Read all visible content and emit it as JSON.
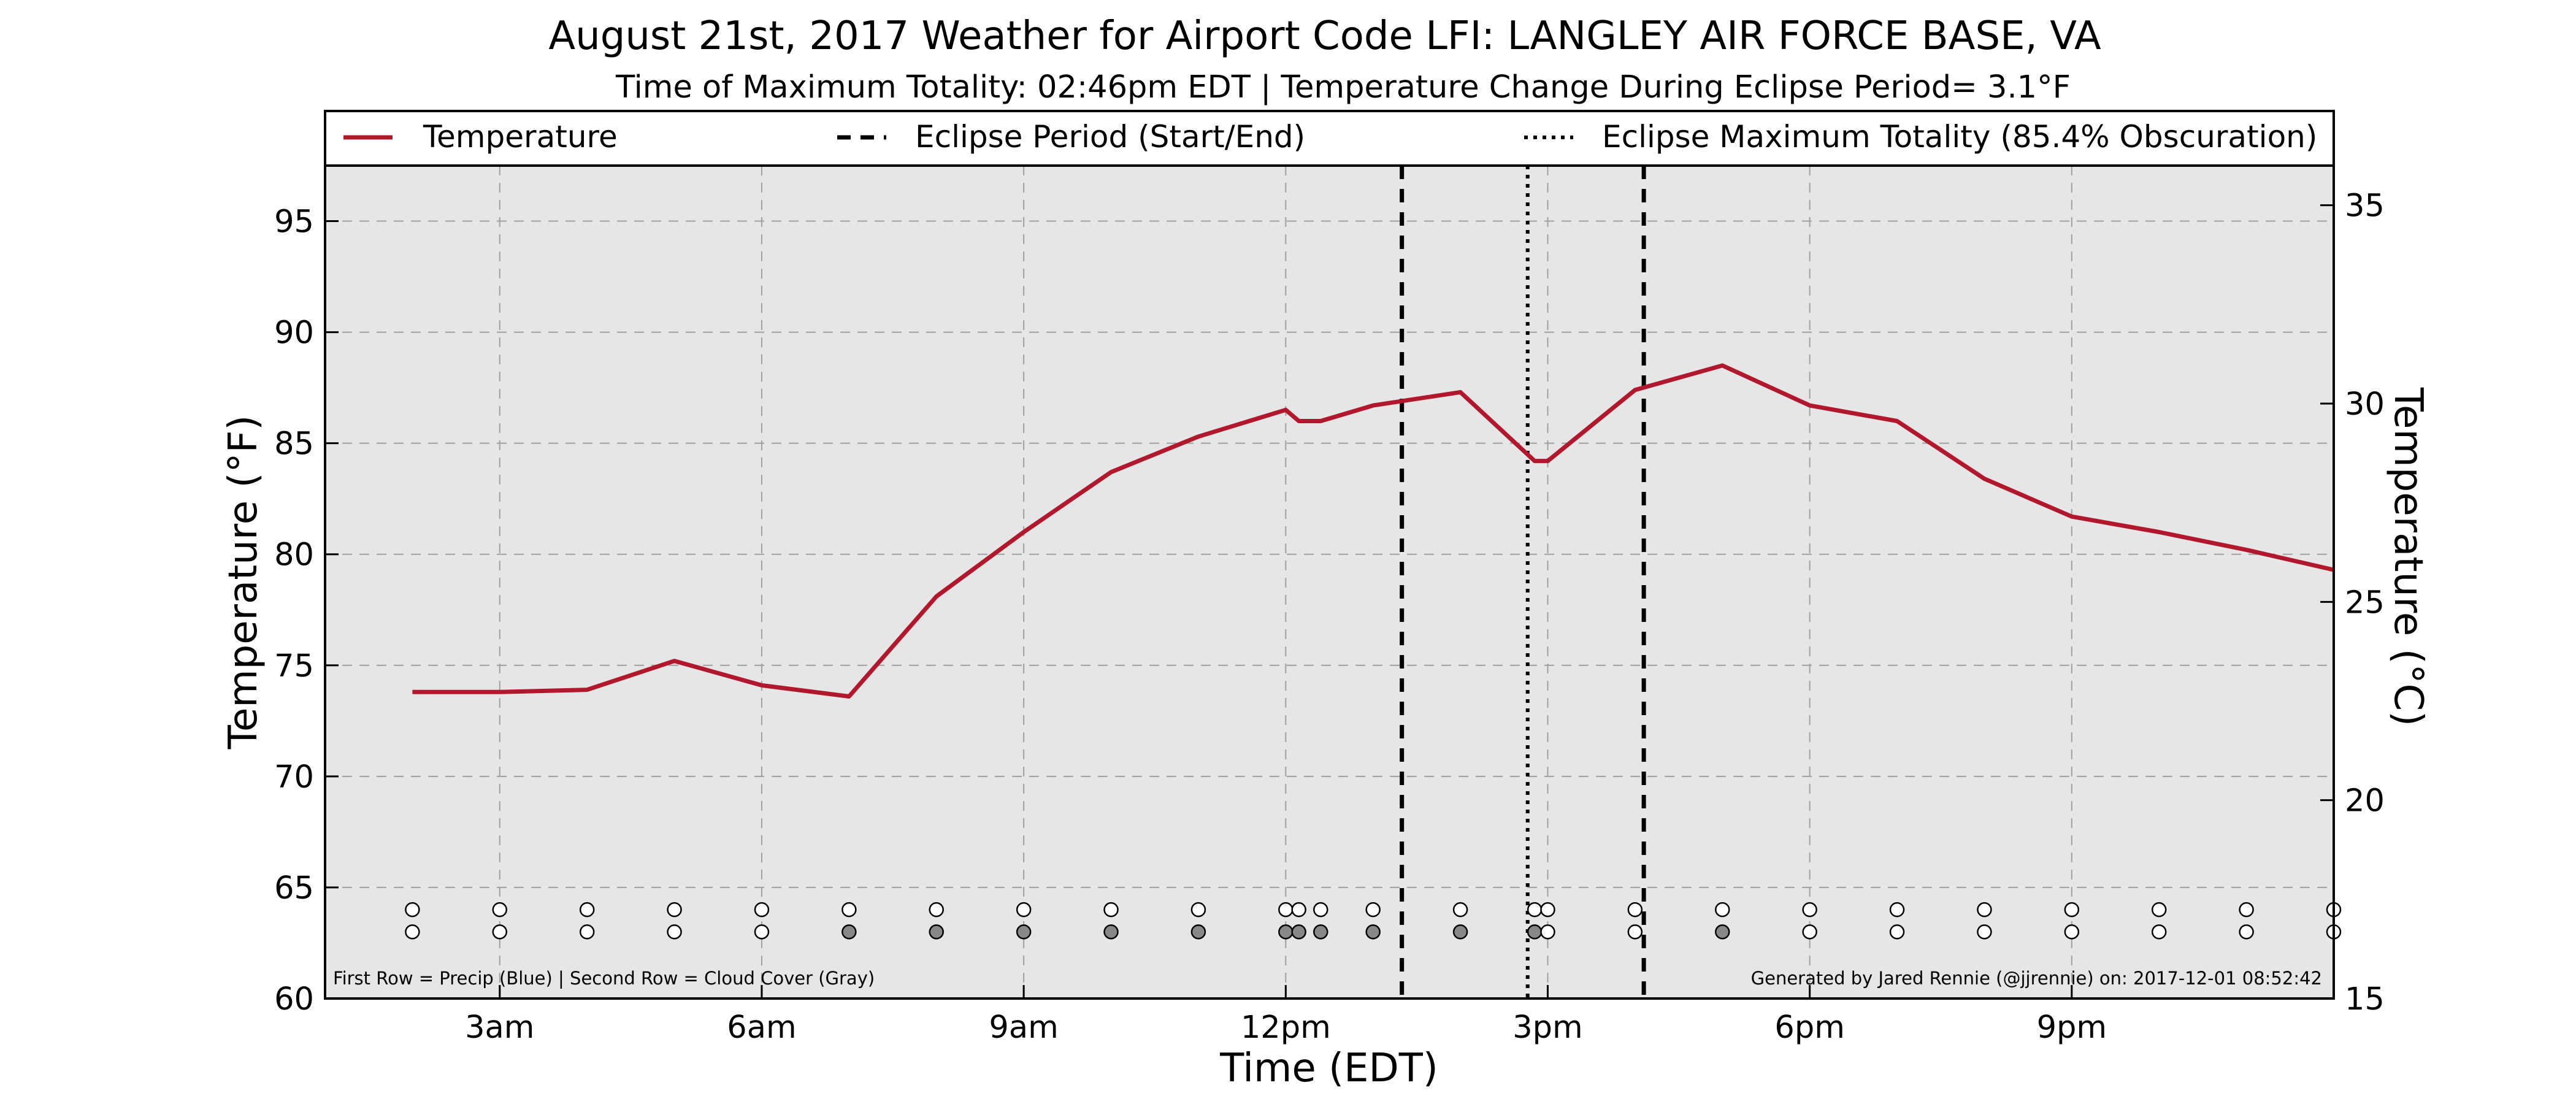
{
  "chart_data": {
    "type": "line",
    "title": "August 21st, 2017 Weather for Airport Code LFI: LANGLEY AIR FORCE BASE, VA",
    "subtitle": "Time of Maximum Totality: 02:46pm EDT | Temperature Change During Eclipse Period= 3.1°F",
    "xlabel": "Time (EDT)",
    "ylabel": "Temperature (°F)",
    "ylabel_right": "Temperature (°C)",
    "xlim": [
      1.0,
      24.0
    ],
    "ylim": [
      60,
      97.5
    ],
    "ylim_right": [
      15,
      36
    ],
    "x_ticks": [
      {
        "x": 3,
        "label": "3am"
      },
      {
        "x": 6,
        "label": "6am"
      },
      {
        "x": 9,
        "label": "9am"
      },
      {
        "x": 12,
        "label": "12pm"
      },
      {
        "x": 15,
        "label": "3pm"
      },
      {
        "x": 18,
        "label": "6pm"
      },
      {
        "x": 21,
        "label": "9pm"
      }
    ],
    "y_ticks": [
      60,
      65,
      70,
      75,
      80,
      85,
      90,
      95
    ],
    "y_ticks_right": [
      15,
      20,
      25,
      30,
      35
    ],
    "grid": true,
    "legend_position": "top",
    "background_color": "#e6e6e6",
    "series": [
      {
        "name": "Temperature",
        "color": "#b2182b",
        "x": [
          2.0,
          3.0,
          4.0,
          5.0,
          6.0,
          7.0,
          8.0,
          9.0,
          10.0,
          11.0,
          12.0,
          12.15,
          12.4,
          13.0,
          14.0,
          14.85,
          15.0,
          16.0,
          17.0,
          18.0,
          19.0,
          20.0,
          21.0,
          22.0,
          23.0,
          24.0
        ],
        "values": [
          73.8,
          73.8,
          73.9,
          75.2,
          74.1,
          73.6,
          78.1,
          81.0,
          83.7,
          85.3,
          86.5,
          86.0,
          86.0,
          86.7,
          87.3,
          84.2,
          84.2,
          87.4,
          88.5,
          86.7,
          86.0,
          83.4,
          81.7,
          81.0,
          80.2,
          79.3
        ]
      }
    ],
    "eclipse_lines": [
      {
        "x": 13.33,
        "style": "dashed",
        "color": "#000000"
      },
      {
        "x": 14.77,
        "style": "dotted",
        "color": "#000000"
      },
      {
        "x": 16.1,
        "style": "dashed",
        "color": "#000000"
      }
    ],
    "legend": [
      {
        "label": "Temperature",
        "style": "solid",
        "color": "#b2182b"
      },
      {
        "label": "Eclipse Period (Start/End)",
        "style": "dashed",
        "color": "#000000"
      },
      {
        "label": "Eclipse Maximum Totality (85.4% Obscuration)",
        "style": "dotted",
        "color": "#000000"
      }
    ],
    "observation_rows": {
      "precip_y": 64,
      "cloud_y": 63,
      "precip_color": "#ffffff",
      "cloud_clear_color": "#ffffff",
      "cloud_cover_color": "#888888",
      "observations": [
        {
          "x": 2.0,
          "cloud": false
        },
        {
          "x": 3.0,
          "cloud": false
        },
        {
          "x": 4.0,
          "cloud": false
        },
        {
          "x": 5.0,
          "cloud": false
        },
        {
          "x": 6.0,
          "cloud": false
        },
        {
          "x": 7.0,
          "cloud": true
        },
        {
          "x": 8.0,
          "cloud": true
        },
        {
          "x": 9.0,
          "cloud": true
        },
        {
          "x": 10.0,
          "cloud": true
        },
        {
          "x": 11.0,
          "cloud": true
        },
        {
          "x": 12.0,
          "cloud": true
        },
        {
          "x": 12.15,
          "cloud": true
        },
        {
          "x": 12.4,
          "cloud": true
        },
        {
          "x": 13.0,
          "cloud": true
        },
        {
          "x": 14.0,
          "cloud": true
        },
        {
          "x": 14.85,
          "cloud": true
        },
        {
          "x": 15.0,
          "cloud": false
        },
        {
          "x": 16.0,
          "cloud": false
        },
        {
          "x": 17.0,
          "cloud": true
        },
        {
          "x": 18.0,
          "cloud": false
        },
        {
          "x": 19.0,
          "cloud": false
        },
        {
          "x": 20.0,
          "cloud": false
        },
        {
          "x": 21.0,
          "cloud": false
        },
        {
          "x": 22.0,
          "cloud": false
        },
        {
          "x": 23.0,
          "cloud": false
        },
        {
          "x": 24.0,
          "cloud": false
        }
      ]
    },
    "footnote_left": "First Row = Precip (Blue) | Second Row = Cloud Cover (Gray)",
    "footnote_right": "Generated by Jared Rennie (@jjrennie) on: 2017-12-01 08:52:42"
  }
}
